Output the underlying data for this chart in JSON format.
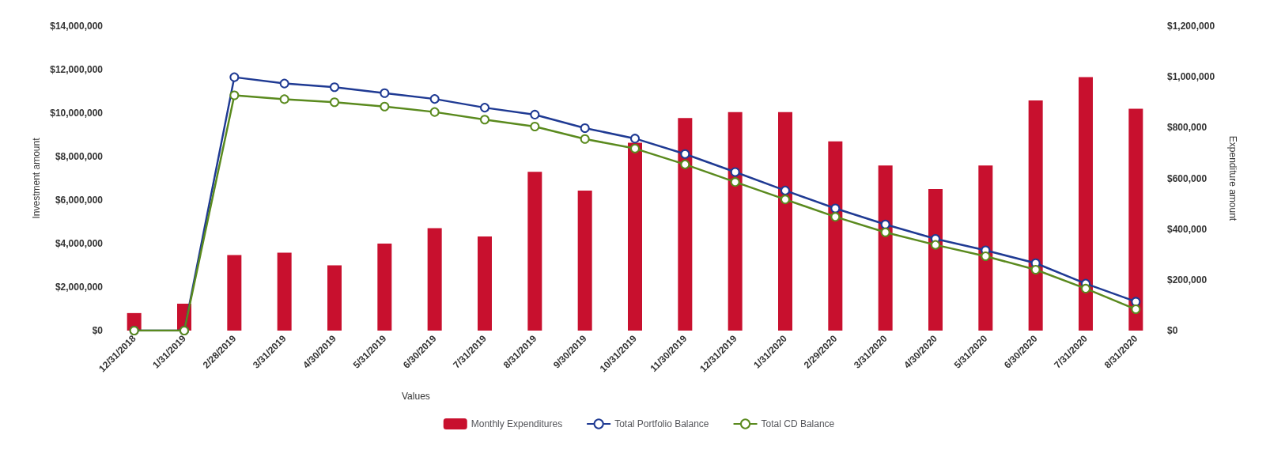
{
  "chart_data": {
    "type": "bar",
    "categories": [
      "12/31/2018",
      "1/31/2019",
      "2/28/2019",
      "3/31/2019",
      "4/30/2019",
      "5/31/2019",
      "6/30/2019",
      "7/31/2019",
      "8/31/2019",
      "9/30/2019",
      "10/31/2019",
      "11/30/2019",
      "12/31/2019",
      "1/31/2020",
      "2/29/2020",
      "3/31/2020",
      "4/30/2020",
      "5/31/2020",
      "6/30/2020",
      "7/31/2020",
      "8/31/2020"
    ],
    "series": [
      {
        "name": "Monthly Expenditures",
        "axis": "y2",
        "color": "#c8102e",
        "values": [
          69000,
          106000,
          298000,
          307000,
          257000,
          343000,
          404000,
          371000,
          626000,
          552000,
          740000,
          838000,
          861000,
          861000,
          746000,
          651000,
          558000,
          651000,
          907000,
          999000,
          874000
        ]
      },
      {
        "name": "Total Portfolio Balance",
        "type": "line",
        "color": "#1f3a93",
        "values": [
          0,
          0,
          11650000,
          11360000,
          11190000,
          10920000,
          10650000,
          10250000,
          9930000,
          9310000,
          8830000,
          8120000,
          7290000,
          6440000,
          5620000,
          4880000,
          4220000,
          3690000,
          3100000,
          2160000,
          1330000
        ]
      },
      {
        "name": "Total CD Balance",
        "type": "line",
        "color": "#5a8a1e",
        "values": [
          0,
          0,
          10820000,
          10640000,
          10500000,
          10300000,
          10050000,
          9700000,
          9380000,
          8810000,
          8370000,
          7640000,
          6830000,
          6030000,
          5230000,
          4520000,
          3940000,
          3420000,
          2800000,
          1930000,
          980000
        ]
      }
    ],
    "xlabel": "Values",
    "ylabel": "Investment amount",
    "y2label": "Expenditure amount",
    "ylim": [
      0,
      14000000
    ],
    "yticks": [
      {
        "value": 0,
        "label": "$0"
      },
      {
        "value": 2000000,
        "label": "$2,000,000"
      },
      {
        "value": 4000000,
        "label": "$4,000,000"
      },
      {
        "value": 6000000,
        "label": "$6,000,000"
      },
      {
        "value": 8000000,
        "label": "$8,000,000"
      },
      {
        "value": 10000000,
        "label": "$10,000,000"
      },
      {
        "value": 12000000,
        "label": "$12,000,000"
      },
      {
        "value": 14000000,
        "label": "$14,000,000"
      }
    ],
    "y2lim": [
      0,
      1200000
    ],
    "y2ticks": [
      {
        "value": 0,
        "label": "$0"
      },
      {
        "value": 200000,
        "label": "$200,000"
      },
      {
        "value": 400000,
        "label": "$400,000"
      },
      {
        "value": 600000,
        "label": "$600,000"
      },
      {
        "value": 800000,
        "label": "$800,000"
      },
      {
        "value": 1000000,
        "label": "$1,000,000"
      },
      {
        "value": 1200000,
        "label": "$1,200,000"
      }
    ],
    "grid": false,
    "legend": "bottom",
    "marker": "circle",
    "line_style": "solid"
  }
}
